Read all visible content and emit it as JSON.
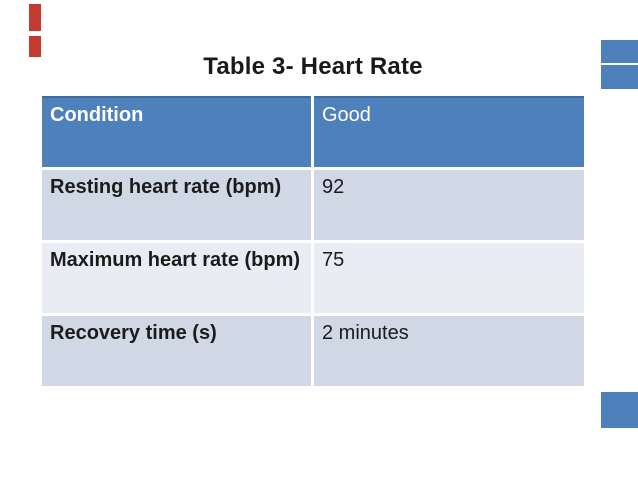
{
  "title": "Table 3- Heart Rate",
  "table": {
    "columns": [
      "Condition",
      "Good"
    ],
    "rows": [
      {
        "label": "Resting heart rate (bpm)",
        "value": "92"
      },
      {
        "label": "Maximum heart rate (bpm)",
        "value": "75"
      },
      {
        "label": "Recovery time (s)",
        "value": "2 minutes"
      }
    ]
  },
  "chart_data": {
    "type": "table",
    "title": "Table 3- Heart Rate",
    "columns": [
      "Condition",
      "Good"
    ],
    "rows": [
      [
        "Resting heart rate (bpm)",
        "92"
      ],
      [
        "Maximum heart rate (bpm)",
        "75"
      ],
      [
        "Recovery time (s)",
        "2 minutes"
      ]
    ]
  },
  "colors": {
    "header_background": "#4e80bc",
    "header_top_border": "#3e6b9f",
    "row_band_dark": "#d0d7e5",
    "row_band_light": "#e9ecf2",
    "header_text": "#ffffff",
    "body_text": "#1b1b1b",
    "red_accent": "#c23a31",
    "blue_accent": "#4e80bc",
    "page_background": "#ffffff"
  }
}
